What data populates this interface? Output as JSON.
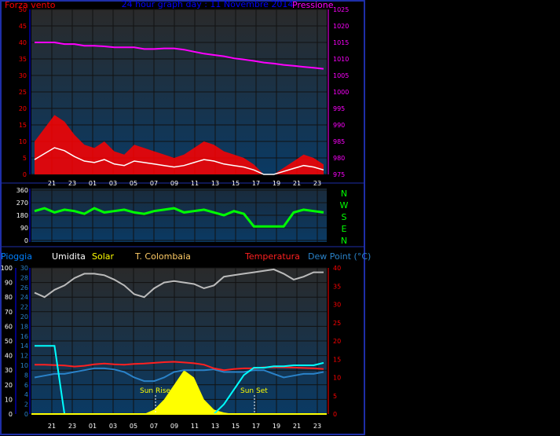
{
  "header": {
    "left_label": "Forza vento",
    "center_title": "24 hour graph day : 11 Novembre 2014",
    "right_label": "Pressione"
  },
  "compass": [
    "N",
    "W",
    "S",
    "E",
    "N"
  ],
  "bottom_legend": {
    "pioggia": "Pioggia",
    "umidita": "Umidita",
    "solar": "Solar",
    "colombaia": "T. Colombaia",
    "temperatura": "Temperatura",
    "dewpoint": "Dew Point (°C)"
  },
  "annotations": {
    "sun_rise": "Sun Rise",
    "sun_set": "Sun Set"
  },
  "colors": {
    "panel_bg_top": "#2a2a2a",
    "panel_bg_bottom": "#0a3a64",
    "frame": "#1e2ea8",
    "wind": "#ff0000",
    "pressure": "#ff00ff",
    "direction": "#00ff00",
    "humidity": "#bbbbbb",
    "solar": "#ffff00",
    "temperature": "#ff2020",
    "dewpoint": "#2a82c8",
    "rain": "#00ffff",
    "axis_blue": "#0000ff",
    "axis_red": "#ff0000"
  },
  "chart_data": [
    {
      "type": "line",
      "x_ticks": [
        "21",
        "23",
        "01",
        "03",
        "05",
        "07",
        "09",
        "11",
        "13",
        "15",
        "17",
        "19",
        "21",
        "23"
      ],
      "left_axis": {
        "ylim": [
          0,
          50
        ],
        "ticks": [
          "0",
          "5",
          "10",
          "15",
          "20",
          "25",
          "30",
          "35",
          "40",
          "45",
          "50"
        ]
      },
      "right_axis": {
        "ylim": [
          975,
          1025
        ],
        "ticks": [
          "975",
          "980",
          "985",
          "990",
          "995",
          "1000",
          "1005",
          "1010",
          "1015",
          "1020",
          "1025"
        ]
      },
      "series": [
        {
          "name": "Forza vento",
          "axis": "left",
          "values": [
            10,
            14,
            18,
            16,
            12,
            9,
            8,
            10,
            7,
            6,
            9,
            8,
            7,
            6,
            5,
            6,
            8,
            10,
            9,
            7,
            6,
            5,
            3,
            0,
            0,
            2,
            4,
            6,
            5,
            3
          ]
        },
        {
          "name": "Pressione",
          "axis": "right",
          "values": [
            1015,
            1015,
            1015,
            1014.5,
            1014.5,
            1014,
            1014,
            1013.8,
            1013.5,
            1013.5,
            1013.5,
            1013,
            1013,
            1013.2,
            1013.2,
            1012.8,
            1012.2,
            1011.6,
            1011.2,
            1010.8,
            1010.2,
            1009.8,
            1009.4,
            1008.9,
            1008.6,
            1008.2,
            1007.9,
            1007.6,
            1007.3,
            1007
          ]
        }
      ]
    },
    {
      "type": "line",
      "x_ticks": [
        "21",
        "23",
        "01",
        "03",
        "05",
        "07",
        "09",
        "11",
        "13",
        "15",
        "17",
        "19",
        "21",
        "23"
      ],
      "left_axis": {
        "ylim": [
          0,
          360
        ],
        "ticks": [
          "0",
          "90",
          "180",
          "270",
          "360"
        ]
      },
      "series": [
        {
          "values": [
            210,
            230,
            200,
            220,
            210,
            190,
            230,
            200,
            210,
            220,
            200,
            190,
            210,
            220,
            230,
            200,
            210,
            220,
            200,
            180,
            210,
            190,
            100,
            100,
            100,
            100,
            200,
            220,
            210,
            200
          ]
        }
      ]
    },
    {
      "type": "line",
      "x_ticks": [
        "21",
        "23",
        "01",
        "03",
        "05",
        "07",
        "09",
        "11",
        "13",
        "15",
        "17",
        "19",
        "21",
        "23"
      ],
      "axes": {
        "pioggia": {
          "ylim": [
            0,
            100
          ],
          "ticks": [
            "0",
            "10",
            "20",
            "30",
            "40",
            "50",
            "60",
            "70",
            "80",
            "90",
            "100"
          ]
        },
        "umidita": {
          "ylim": [
            0,
            30
          ],
          "ticks": [
            "0",
            "2",
            "4",
            "6",
            "8",
            "10",
            "12",
            "14",
            "16",
            "18",
            "20",
            "22",
            "24",
            "26",
            "28",
            "30"
          ]
        },
        "temperatura": {
          "ylim": [
            0,
            40
          ],
          "ticks": [
            "0",
            "5",
            "10",
            "15",
            "20",
            "25",
            "30",
            "35",
            "40"
          ]
        }
      },
      "series": [
        {
          "name": "Umidita",
          "axis": "pioggia",
          "values": [
            83,
            80,
            85,
            88,
            93,
            96,
            96,
            95,
            92,
            88,
            82,
            80,
            86,
            90,
            91,
            90,
            89,
            86,
            88,
            94,
            95,
            96,
            97,
            98,
            99,
            96,
            92,
            94,
            97,
            97
          ]
        },
        {
          "name": "Temperatura",
          "axis": "temperatura",
          "values": [
            13.5,
            13.5,
            13.4,
            13.3,
            13,
            13.2,
            13.6,
            13.8,
            13.6,
            13.5,
            13.7,
            13.8,
            14,
            14.2,
            14.3,
            14.1,
            13.9,
            13.5,
            12.5,
            12,
            12.3,
            12.5,
            12.5,
            12.8,
            12.8,
            12.8,
            12.7,
            12.6,
            12.5,
            12.3
          ]
        },
        {
          "name": "Dew Point (°C)",
          "axis": "temperatura",
          "values": [
            10,
            10.5,
            11,
            11,
            11.5,
            12,
            12.5,
            12.5,
            12.2,
            11.5,
            10,
            9,
            9,
            10,
            11.5,
            12,
            12,
            12,
            12.2,
            11.5,
            11.5,
            11.5,
            12,
            12,
            11,
            10,
            10.5,
            11,
            11,
            11.5
          ]
        },
        {
          "name": "Solar",
          "axis": "pioggia",
          "values": [
            0,
            0,
            0,
            0,
            0,
            0,
            0,
            0,
            0,
            0,
            0,
            0,
            3,
            10,
            20,
            30,
            25,
            10,
            3,
            1,
            0,
            0,
            0,
            0,
            0,
            0,
            0,
            0,
            0,
            0
          ]
        },
        {
          "name": "Pioggia",
          "axis": "umidita",
          "values": [
            14,
            14,
            14,
            0,
            0,
            0,
            0,
            0,
            0,
            0,
            0,
            0,
            0,
            0,
            0,
            0,
            0,
            0,
            0,
            2,
            5,
            8,
            9.5,
            9.5,
            9.8,
            9.8,
            10,
            10,
            10,
            10.5
          ]
        }
      ]
    }
  ]
}
